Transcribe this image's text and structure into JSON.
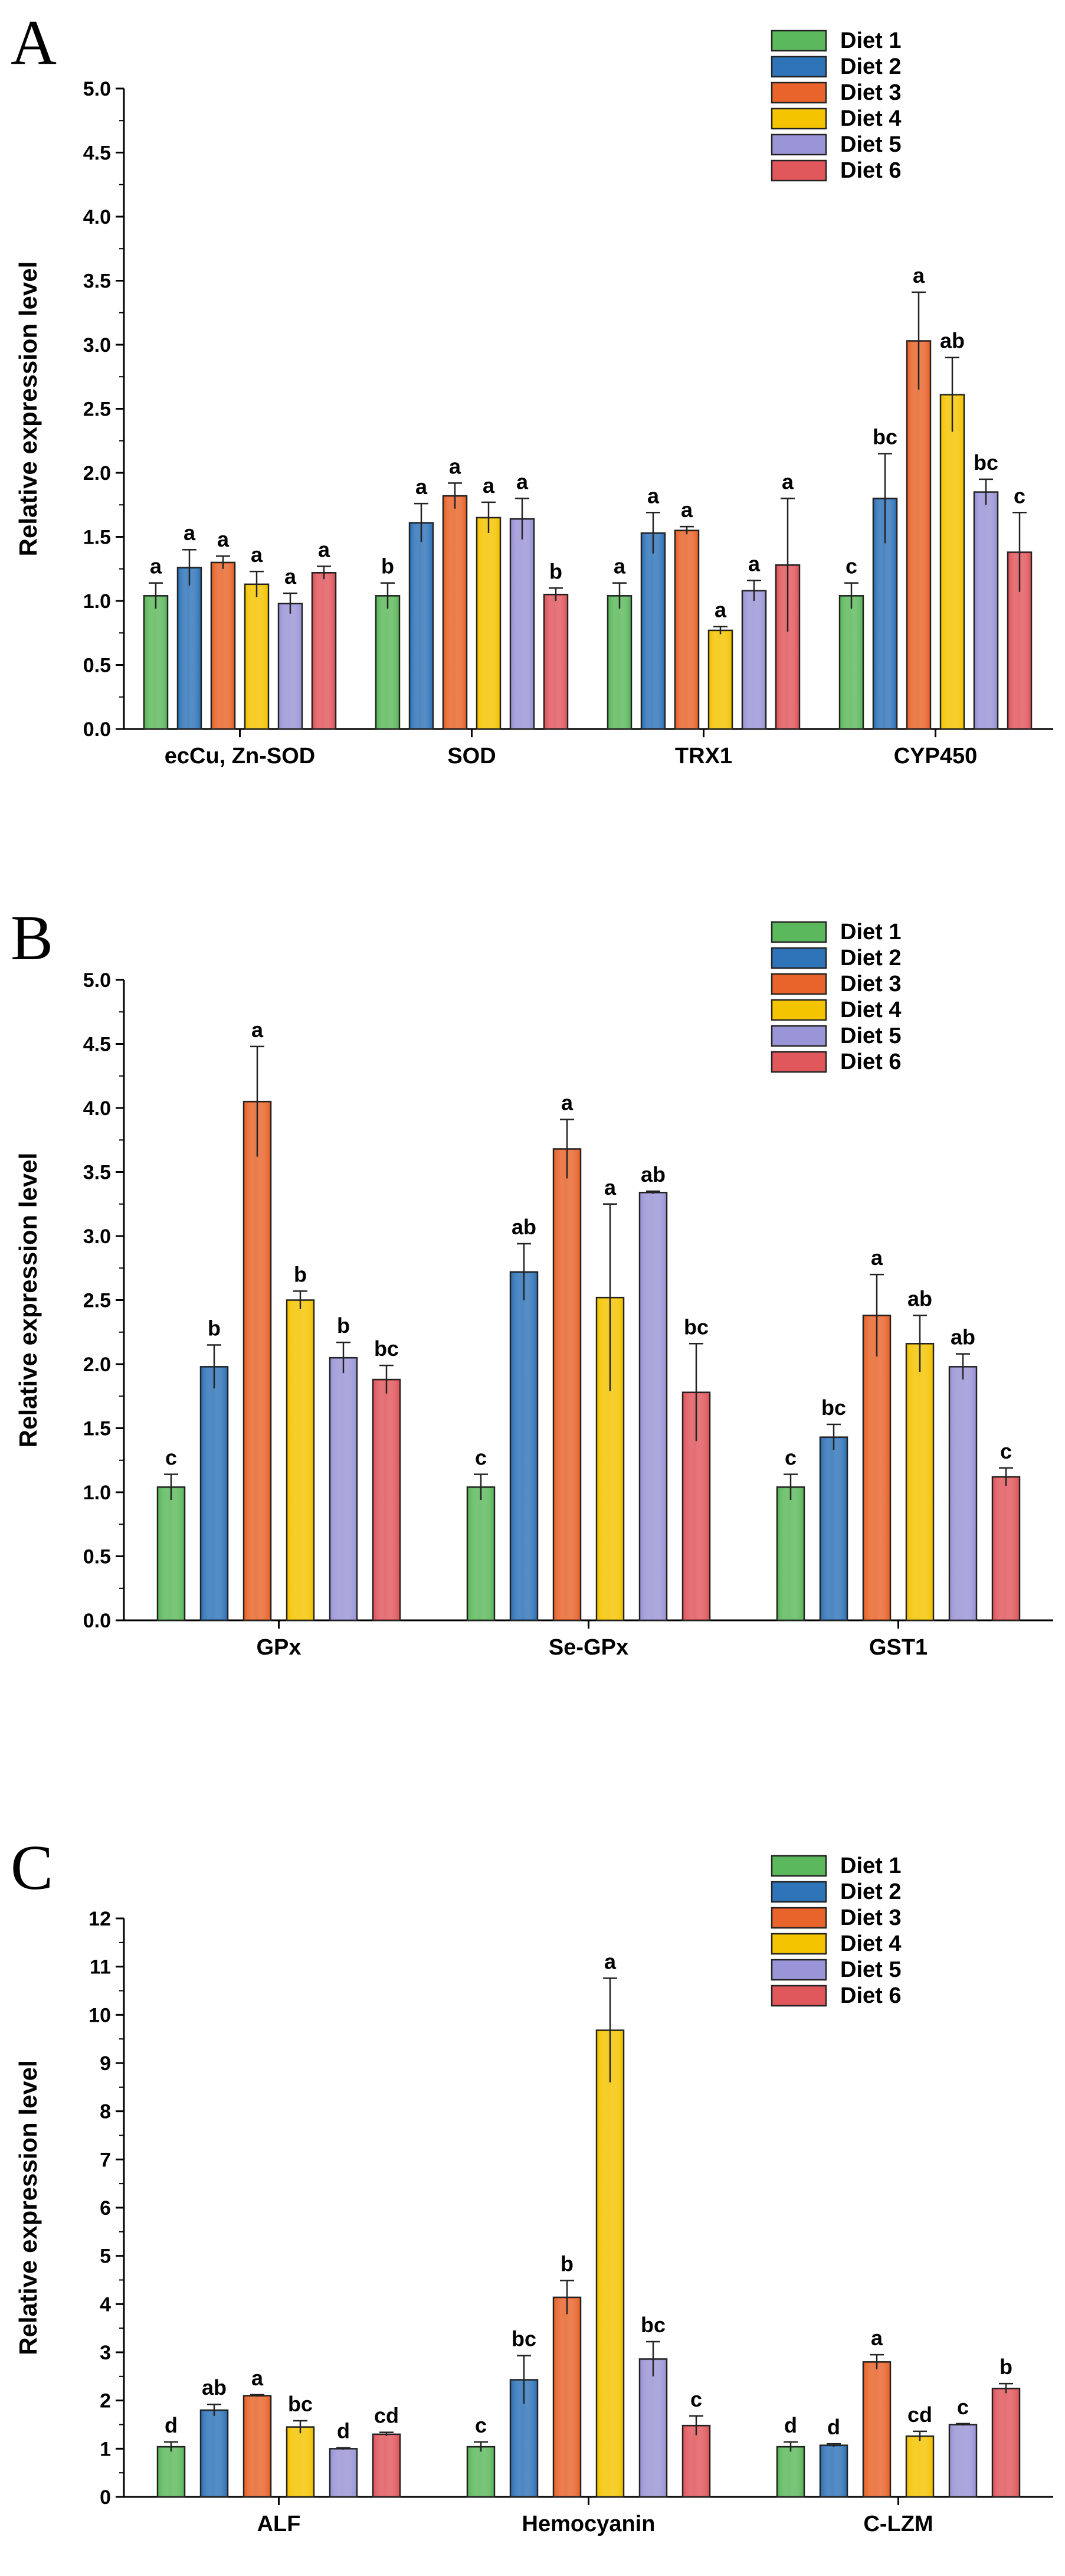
{
  "legend": {
    "entries": [
      "Diet 1",
      "Diet 2",
      "Diet 3",
      "Diet 4",
      "Diet 5",
      "Diet 6"
    ]
  },
  "colors": {
    "series": [
      "#5cb85c",
      "#2f73b8",
      "#e8642a",
      "#f4c400",
      "#9a95d6",
      "#e0575c"
    ],
    "axis": "#000000"
  },
  "chart_data": [
    {
      "panel": "A",
      "type": "bar",
      "ylabel": "Relative expression level",
      "ylim": [
        0,
        5
      ],
      "yticks": [
        "0.0",
        "0.5",
        "1.0",
        "1.5",
        "2.0",
        "2.5",
        "3.0",
        "3.5",
        "4.0",
        "4.5",
        "5.0"
      ],
      "legend": "top-right",
      "categories": [
        "ecCu, Zn-SOD",
        "SOD",
        "TRX1",
        "CYP450"
      ],
      "series": [
        {
          "name": "Diet 1",
          "values": [
            1.04,
            1.04,
            1.04,
            1.04
          ],
          "errors": [
            0.1,
            0.1,
            0.1,
            0.1
          ],
          "labels": [
            "a",
            "b",
            "a",
            "c"
          ]
        },
        {
          "name": "Diet 2",
          "values": [
            1.26,
            1.61,
            1.53,
            1.8
          ],
          "errors": [
            0.14,
            0.15,
            0.16,
            0.35
          ],
          "labels": [
            "a",
            "a",
            "a",
            "bc"
          ]
        },
        {
          "name": "Diet 3",
          "values": [
            1.3,
            1.82,
            1.55,
            3.03
          ],
          "errors": [
            0.05,
            0.1,
            0.03,
            0.38
          ],
          "labels": [
            "a",
            "a",
            "a",
            "a"
          ]
        },
        {
          "name": "Diet 4",
          "values": [
            1.13,
            1.65,
            0.77,
            2.61
          ],
          "errors": [
            0.1,
            0.12,
            0.03,
            0.29
          ],
          "labels": [
            "a",
            "a",
            "a",
            "ab"
          ]
        },
        {
          "name": "Diet 5",
          "values": [
            0.98,
            1.64,
            1.08,
            1.85
          ],
          "errors": [
            0.08,
            0.16,
            0.08,
            0.1
          ],
          "labels": [
            "a",
            "a",
            "a",
            "bc"
          ]
        },
        {
          "name": "Diet 6",
          "values": [
            1.22,
            1.05,
            1.28,
            1.38
          ],
          "errors": [
            0.05,
            0.05,
            0.52,
            0.31
          ],
          "labels": [
            "a",
            "b",
            "a",
            "c"
          ]
        }
      ]
    },
    {
      "panel": "B",
      "type": "bar",
      "ylabel": "Relative expression level",
      "ylim": [
        0,
        5
      ],
      "yticks": [
        "0.0",
        "0.5",
        "1.0",
        "1.5",
        "2.0",
        "2.5",
        "3.0",
        "3.5",
        "4.0",
        "4.5",
        "5.0"
      ],
      "legend": "top-right",
      "categories": [
        "GPx",
        "Se-GPx",
        "GST1"
      ],
      "series": [
        {
          "name": "Diet 1",
          "values": [
            1.04,
            1.04,
            1.04
          ],
          "errors": [
            0.1,
            0.1,
            0.1
          ],
          "labels": [
            "c",
            "c",
            "c"
          ]
        },
        {
          "name": "Diet 2",
          "values": [
            1.98,
            2.72,
            1.43
          ],
          "errors": [
            0.17,
            0.22,
            0.1
          ],
          "labels": [
            "b",
            "ab",
            "bc"
          ]
        },
        {
          "name": "Diet 3",
          "values": [
            4.05,
            3.68,
            2.38
          ],
          "errors": [
            0.43,
            0.23,
            0.32
          ],
          "labels": [
            "a",
            "a",
            "a"
          ]
        },
        {
          "name": "Diet 4",
          "values": [
            2.5,
            2.52,
            2.16
          ],
          "errors": [
            0.07,
            0.73,
            0.22
          ],
          "labels": [
            "b",
            "a",
            "ab"
          ]
        },
        {
          "name": "Diet 5",
          "values": [
            2.05,
            3.34,
            1.98
          ],
          "errors": [
            0.12,
            0.01,
            0.1
          ],
          "labels": [
            "b",
            "ab",
            "ab"
          ]
        },
        {
          "name": "Diet 6",
          "values": [
            1.88,
            1.78,
            1.12
          ],
          "errors": [
            0.11,
            0.38,
            0.07
          ],
          "labels": [
            "bc",
            "bc",
            "c"
          ]
        }
      ]
    },
    {
      "panel": "C",
      "type": "bar",
      "ylabel": "Relative expression level",
      "ylim": [
        0,
        12
      ],
      "yticks": [
        "0",
        "1",
        "2",
        "3",
        "4",
        "5",
        "6",
        "7",
        "8",
        "9",
        "10",
        "11",
        "12"
      ],
      "legend": "top-right",
      "categories": [
        "ALF",
        "Hemocyanin",
        "C-LZM"
      ],
      "series": [
        {
          "name": "Diet 1",
          "values": [
            1.04,
            1.04,
            1.04
          ],
          "errors": [
            0.1,
            0.1,
            0.1
          ],
          "labels": [
            "d",
            "c",
            "d"
          ]
        },
        {
          "name": "Diet 2",
          "values": [
            1.8,
            2.43,
            1.07
          ],
          "errors": [
            0.12,
            0.5,
            0.03
          ],
          "labels": [
            "ab",
            "bc",
            "d"
          ]
        },
        {
          "name": "Diet 3",
          "values": [
            2.1,
            4.14,
            2.8
          ],
          "errors": [
            0.02,
            0.35,
            0.15
          ],
          "labels": [
            "a",
            "b",
            "a"
          ]
        },
        {
          "name": "Diet 4",
          "values": [
            1.45,
            9.68,
            1.26
          ],
          "errors": [
            0.13,
            1.08,
            0.1
          ],
          "labels": [
            "bc",
            "a",
            "cd"
          ]
        },
        {
          "name": "Diet 5",
          "values": [
            1.0,
            2.86,
            1.5
          ],
          "errors": [
            0.02,
            0.36,
            0.02
          ],
          "labels": [
            "d",
            "bc",
            "c"
          ]
        },
        {
          "name": "Diet 6",
          "values": [
            1.3,
            1.48,
            2.25
          ],
          "errors": [
            0.04,
            0.2,
            0.1
          ],
          "labels": [
            "cd",
            "c",
            "b"
          ]
        }
      ]
    }
  ]
}
